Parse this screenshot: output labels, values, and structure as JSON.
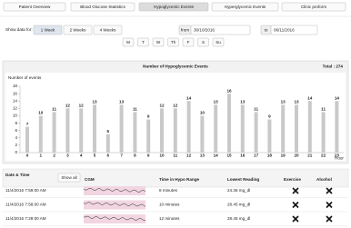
{
  "tabs": [
    "Patient Overview",
    "Blood Glucose Statistics",
    "Hypoglycemic Events",
    "Hyperglycemic Events",
    "Clinic proform"
  ],
  "controls": {
    "show_label": "Show data for:",
    "range_buttons": [
      "1 Week",
      "2 Weeks",
      "4 Weeks"
    ],
    "from_label": "from",
    "from_value": "30/10/2016",
    "to_label": "to",
    "to_value": "06/11/2016",
    "days": [
      "M",
      "T",
      "W",
      "Th",
      "F",
      "S",
      "Su"
    ]
  },
  "chart_data": {
    "type": "bar",
    "title": "Number of Hypoglycemic Events",
    "total": "Total : 274",
    "y_label": "Number of events",
    "x_label": "Hour",
    "categories": [
      "0",
      "1",
      "2",
      "3",
      "4",
      "5",
      "6",
      "7",
      "8",
      "9",
      "10",
      "11",
      "12",
      "13",
      "14",
      "15",
      "16",
      "17",
      "18",
      "19",
      "20",
      "21",
      "22",
      "23"
    ],
    "values": [
      7,
      10,
      11,
      12,
      12,
      13,
      5,
      13,
      11,
      9,
      12,
      12,
      14,
      10,
      13,
      16,
      13,
      11,
      9,
      13,
      13,
      14,
      11,
      14
    ],
    "color": "#c9c9c9",
    "ylim": [
      0,
      18
    ],
    "yticks": [
      0,
      2,
      4,
      6,
      8,
      10,
      12,
      14,
      16,
      18
    ]
  },
  "table": {
    "columns": [
      "Date & Time",
      "CGM",
      "Time in Hypo Range",
      "Lowest Reading",
      "Exercise",
      "Alcohol"
    ],
    "show_all": "Show all",
    "rows": [
      [
        "11/4/2016 7:59:00 AM",
        "8 minutes",
        "24.36 mg_dl"
      ],
      [
        "11/4/2016 7:58:00 AM",
        "10 minutes",
        "28.45 mg_dl"
      ],
      [
        "11/4/2016 7:28:00 AM",
        "12 minutes",
        "28.45 mg_dl"
      ]
    ]
  }
}
